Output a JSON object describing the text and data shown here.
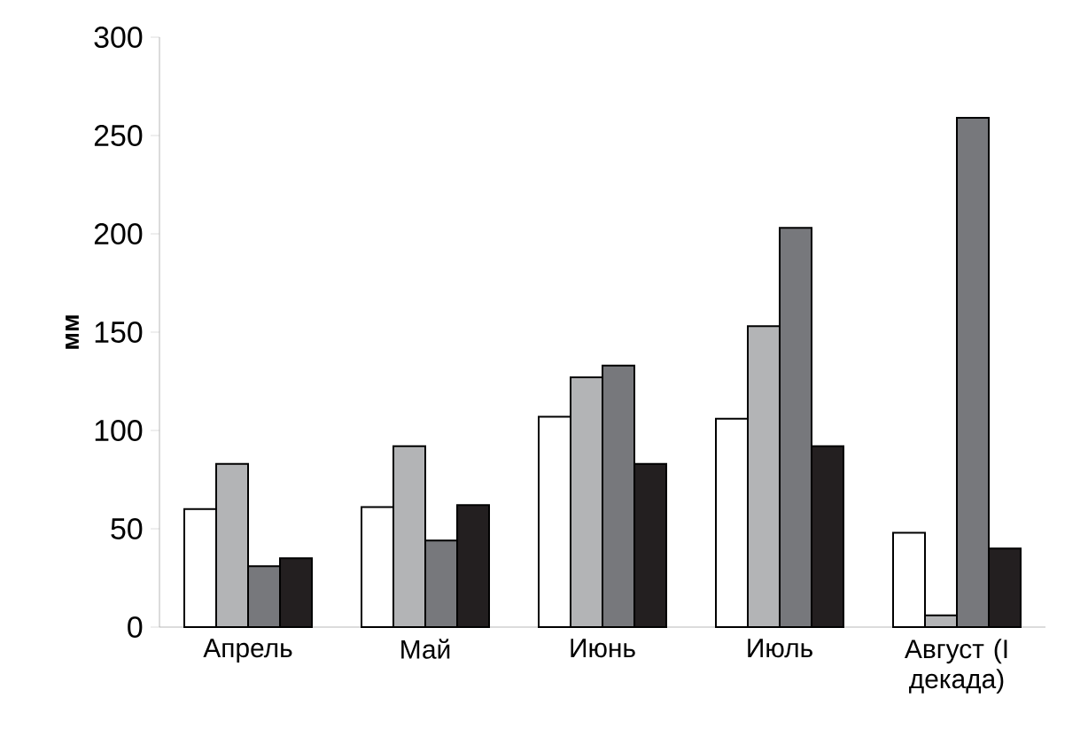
{
  "chart_data": {
    "type": "bar",
    "ylabel": "мм",
    "categories": [
      "Апрель",
      "Май",
      "Июнь",
      "Июль",
      "Август (I декада)"
    ],
    "series": [
      {
        "color": "#ffffff",
        "values": [
          60,
          61,
          107,
          106,
          48
        ]
      },
      {
        "color": "#b3b4b6",
        "values": [
          83,
          92,
          127,
          153,
          6
        ]
      },
      {
        "color": "#77787c",
        "values": [
          31,
          44,
          133,
          203,
          259
        ]
      },
      {
        "color": "#231f20",
        "values": [
          35,
          62,
          83,
          92,
          40
        ]
      }
    ],
    "ylim": [
      0,
      300
    ],
    "yticks": [
      0,
      50,
      100,
      150,
      200,
      250,
      300
    ]
  }
}
